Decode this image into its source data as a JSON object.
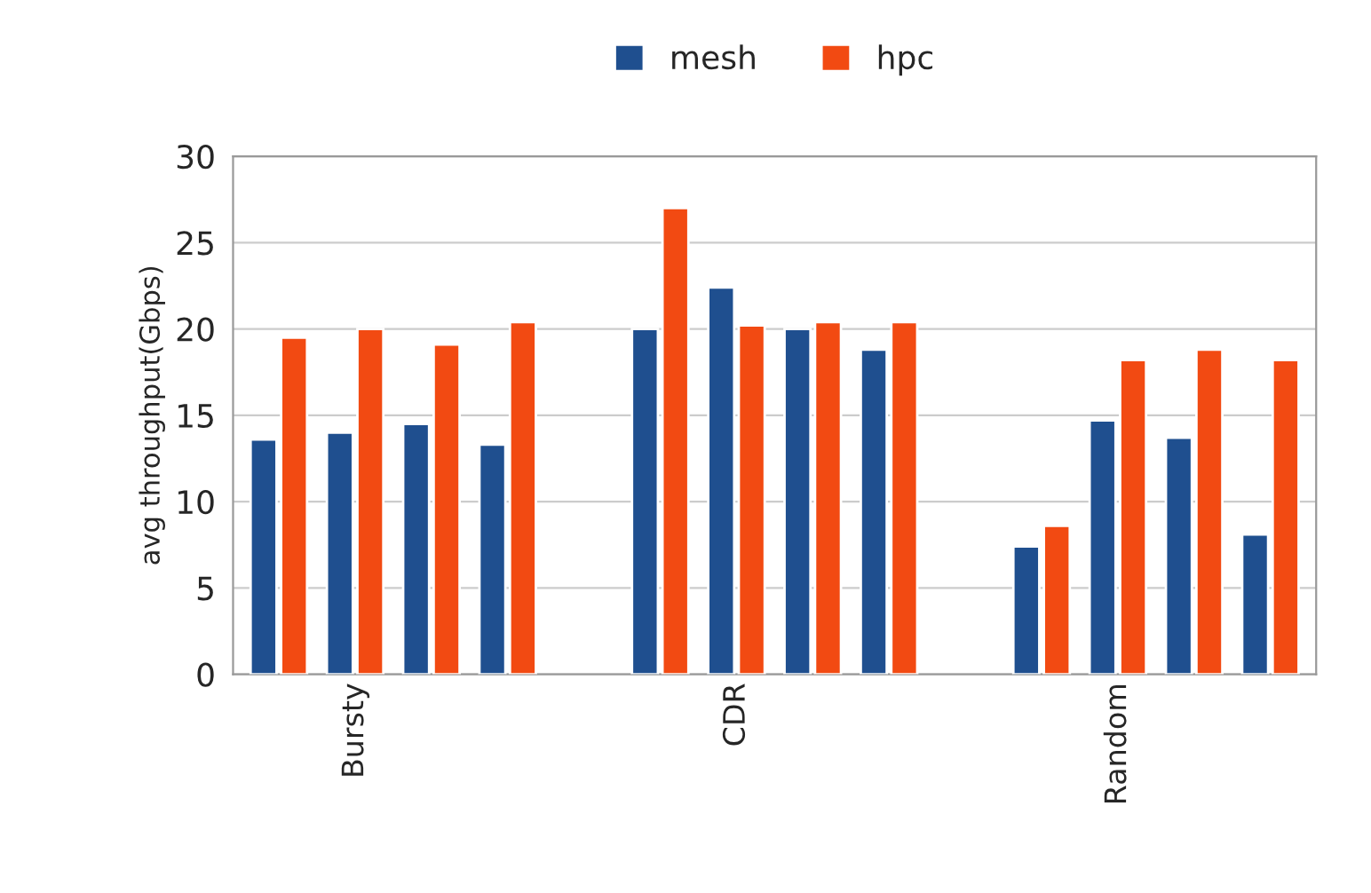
{
  "chart_data": {
    "type": "bar",
    "ylabel": "avg throughput(Gbps)",
    "categories": [
      null,
      "Bursty",
      null,
      null,
      null,
      null,
      "CDR",
      null,
      null,
      null,
      null,
      "Random",
      null,
      null
    ],
    "series": [
      {
        "name": "mesh",
        "color": "#1f4f8f",
        "values": [
          13.6,
          14,
          14.5,
          13.3,
          null,
          20,
          22.4,
          20,
          18.8,
          null,
          7.4,
          14.7,
          13.7,
          8.1
        ]
      },
      {
        "name": "hpc",
        "color": "#f24a12",
        "values": [
          19.5,
          20,
          19.1,
          20.4,
          null,
          27,
          20.2,
          20.4,
          20.4,
          null,
          8.6,
          18.2,
          18.8,
          18.2
        ]
      }
    ],
    "ylim": [
      0,
      30
    ],
    "yticks": [
      0,
      5,
      10,
      15,
      20,
      25,
      30
    ],
    "grid": "y",
    "legend": "top"
  }
}
